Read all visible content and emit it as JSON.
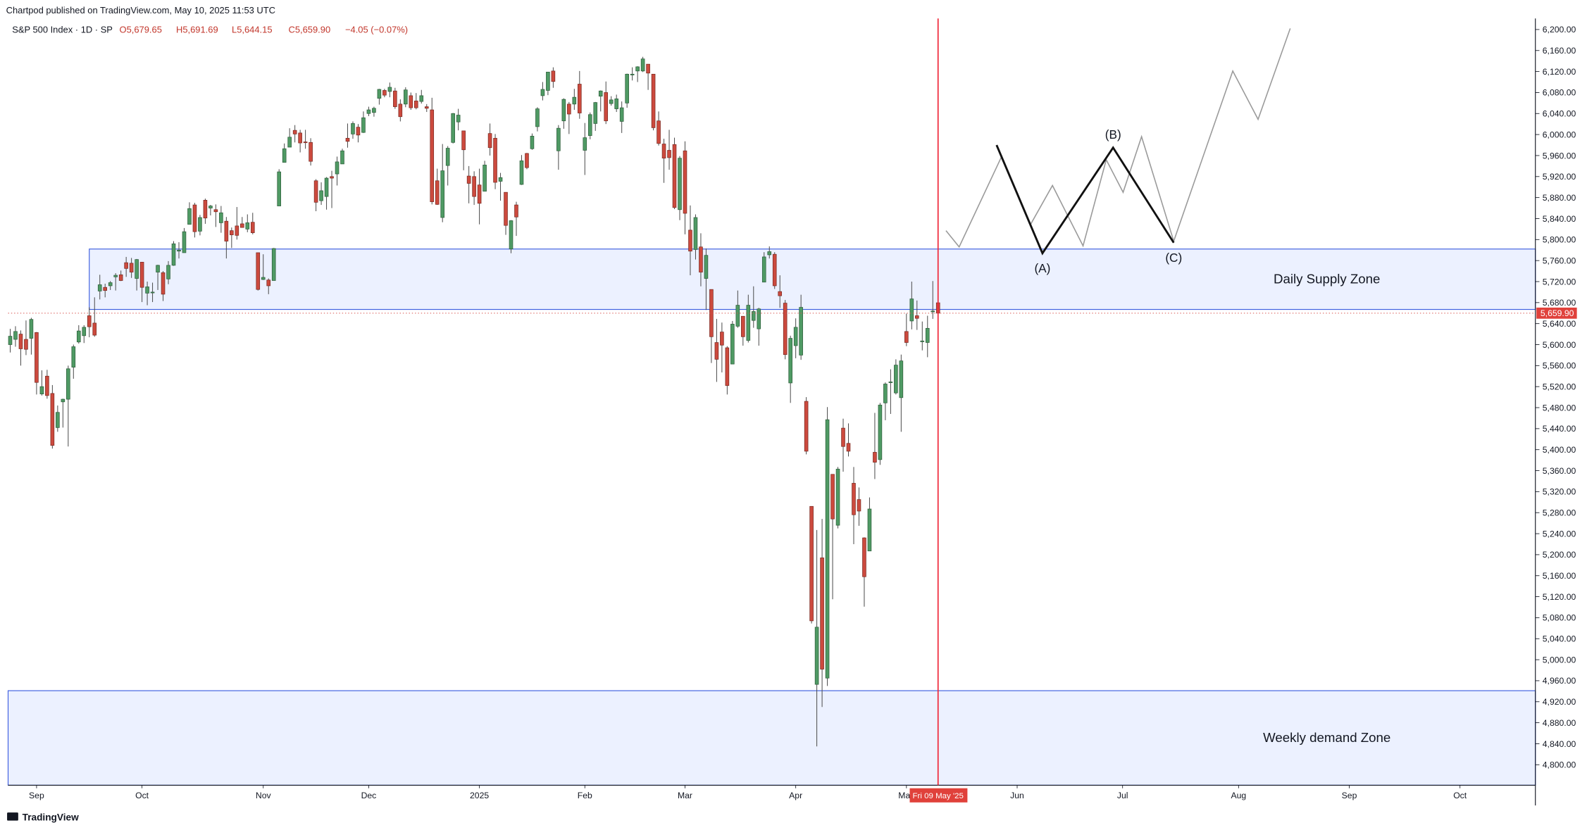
{
  "header": {
    "publisher": "Chartpod published on TradingView.com, May 10, 2025 11:53 UTC",
    "symbol": "S&P 500 Index · 1D · SP",
    "legend": [
      "O5,679.65",
      "H5,691.69",
      "L5,644.15",
      "C5,659.90",
      "−4.05 (−0.07%)"
    ]
  },
  "chart_data": {
    "type": "candlestick",
    "up_color": "#4f9a64",
    "down_color": "#cc4a3e",
    "wick_color": "#4a4a4a",
    "grid": false,
    "xlim": [
      -0.4,
      289.3
    ],
    "ylim": [
      4761,
      6221
    ],
    "xticks": [
      {
        "value": 5,
        "label": "Sep"
      },
      {
        "value": 25,
        "label": "Oct"
      },
      {
        "value": 48,
        "label": "Nov"
      },
      {
        "value": 68,
        "label": "Dec"
      },
      {
        "value": 89,
        "label": "2025"
      },
      {
        "value": 109,
        "label": "Feb"
      },
      {
        "value": 128,
        "label": "Mar"
      },
      {
        "value": 149,
        "label": "Apr"
      },
      {
        "value": 170,
        "label": "May"
      },
      {
        "value": 191,
        "label": "Jun"
      },
      {
        "value": 211,
        "label": "Jul"
      },
      {
        "value": 233,
        "label": "Aug"
      },
      {
        "value": 254,
        "label": "Sep"
      },
      {
        "value": 275,
        "label": "Oct"
      }
    ],
    "yticks": [
      {
        "value": 6200,
        "label": "6,200.00"
      },
      {
        "value": 6160,
        "label": "6,160.00"
      },
      {
        "value": 6120,
        "label": "6,120.00"
      },
      {
        "value": 6080,
        "label": "6,080.00"
      },
      {
        "value": 6040,
        "label": "6,040.00"
      },
      {
        "value": 6000,
        "label": "6,000.00"
      },
      {
        "value": 5960,
        "label": "5,960.00"
      },
      {
        "value": 5920,
        "label": "5,920.00"
      },
      {
        "value": 5880,
        "label": "5,880.00"
      },
      {
        "value": 5840,
        "label": "5,840.00"
      },
      {
        "value": 5800,
        "label": "5,800.00"
      },
      {
        "value": 5760,
        "label": "5,760.00"
      },
      {
        "value": 5720,
        "label": "5,720.00"
      },
      {
        "value": 5680,
        "label": "5,680.00"
      },
      {
        "value": 5640,
        "label": "5,640.00"
      },
      {
        "value": 5600,
        "label": "5,600.00"
      },
      {
        "value": 5560,
        "label": "5,560.00"
      },
      {
        "value": 5520,
        "label": "5,520.00"
      },
      {
        "value": 5480,
        "label": "5,480.00"
      },
      {
        "value": 5440,
        "label": "5,440.00"
      },
      {
        "value": 5400,
        "label": "5,400.00"
      },
      {
        "value": 5360,
        "label": "5,360.00"
      },
      {
        "value": 5320,
        "label": "5,320.00"
      },
      {
        "value": 5280,
        "label": "5,280.00"
      },
      {
        "value": 5240,
        "label": "5,240.00"
      },
      {
        "value": 5200,
        "label": "5,200.00"
      },
      {
        "value": 5160,
        "label": "5,160.00"
      },
      {
        "value": 5120,
        "label": "5,120.00"
      },
      {
        "value": 5080,
        "label": "5,080.00"
      },
      {
        "value": 5040,
        "label": "5,040.00"
      },
      {
        "value": 5000,
        "label": "5,000.00"
      },
      {
        "value": 4960,
        "label": "4,960.00"
      },
      {
        "value": 4920,
        "label": "4,920.00"
      },
      {
        "value": 4880,
        "label": "4,880.00"
      },
      {
        "value": 4840,
        "label": "4,840.00"
      },
      {
        "value": 4800,
        "label": "4,800.00"
      }
    ],
    "last_price": {
      "value": 5659.9,
      "label": "5,659.90"
    },
    "marker_date": {
      "x": 176,
      "label": "Fri 09 May '25"
    },
    "zones": [
      {
        "label": "Daily Supply Zone",
        "x": [
          15,
          289.3
        ],
        "range": [
          5667,
          5782
        ]
      },
      {
        "label": "Weekly demand Zone",
        "x": [
          -0.4,
          289.3
        ],
        "range": [
          4761,
          4941
        ]
      }
    ],
    "projection": {
      "color": "#9a9a9a",
      "x": [
        177.5,
        180,
        188,
        193.5,
        197.7,
        203.5,
        207.9,
        211.1,
        214.6,
        220.7,
        231.9,
        236.7,
        242.8
      ],
      "values": [
        5817,
        5786,
        5957,
        5828,
        5903,
        5788,
        5952,
        5890,
        5996,
        5797,
        6121,
        6029,
        6202
      ]
    },
    "pattern": {
      "color": "#111111",
      "x": [
        187.1,
        195.8,
        209.2,
        220.7
      ],
      "values": [
        5980,
        5774,
        5975,
        5794
      ],
      "labels": [
        "(A)",
        "(B)",
        "(C)"
      ]
    },
    "ohlc": [
      [
        5600,
        5630,
        5585,
        5616
      ],
      [
        5610,
        5635,
        5596,
        5625
      ],
      [
        5620,
        5627,
        5560,
        5592
      ],
      [
        5610,
        5646,
        5580,
        5591
      ],
      [
        5612,
        5651,
        5581,
        5648
      ],
      [
        5623,
        5624,
        5505,
        5528
      ],
      [
        5506,
        5551,
        5503,
        5520
      ],
      [
        5540,
        5552,
        5497,
        5503
      ],
      [
        5507,
        5523,
        5402,
        5408
      ],
      [
        5442,
        5484,
        5434,
        5471
      ],
      [
        5491,
        5497,
        5442,
        5496
      ],
      [
        5496,
        5560,
        5406,
        5554
      ],
      [
        5557,
        5600,
        5535,
        5596
      ],
      [
        5605,
        5637,
        5602,
        5626
      ],
      [
        5617,
        5637,
        5603,
        5633
      ],
      [
        5655,
        5671,
        5614,
        5634
      ],
      [
        5641,
        5690,
        5615,
        5618
      ],
      [
        5702,
        5733,
        5686,
        5714
      ],
      [
        5709,
        5716,
        5690,
        5703
      ],
      [
        5712,
        5721,
        5704,
        5718
      ],
      [
        5729,
        5736,
        5703,
        5732
      ],
      [
        5733,
        5741,
        5721,
        5722
      ],
      [
        5756,
        5767,
        5729,
        5745
      ],
      [
        5755,
        5765,
        5727,
        5738
      ],
      [
        5726,
        5763,
        5703,
        5762
      ],
      [
        5757,
        5757,
        5681,
        5709
      ],
      [
        5698,
        5720,
        5675,
        5710
      ],
      [
        5699,
        5718,
        5681,
        5700
      ],
      [
        5738,
        5752,
        5704,
        5751
      ],
      [
        5737,
        5740,
        5683,
        5696
      ],
      [
        5725,
        5759,
        5715,
        5751
      ],
      [
        5751,
        5797,
        5750,
        5792
      ],
      [
        5778,
        5795,
        5764,
        5780
      ],
      [
        5775,
        5822,
        5775,
        5815
      ],
      [
        5829,
        5871,
        5829,
        5859
      ],
      [
        5866,
        5870,
        5804,
        5815
      ],
      [
        5816,
        5847,
        5808,
        5842
      ],
      [
        5875,
        5878,
        5830,
        5841
      ],
      [
        5860,
        5866,
        5846,
        5864
      ],
      [
        5857,
        5867,
        5824,
        5853
      ],
      [
        5832,
        5864,
        5813,
        5851
      ],
      [
        5835,
        5843,
        5764,
        5797
      ],
      [
        5817,
        5823,
        5784,
        5809
      ],
      [
        5826,
        5862,
        5800,
        5808
      ],
      [
        5830,
        5843,
        5823,
        5823
      ],
      [
        5820,
        5848,
        5814,
        5832
      ],
      [
        5833,
        5851,
        5810,
        5813
      ],
      [
        5775,
        5775,
        5703,
        5705
      ],
      [
        5724,
        5772,
        5723,
        5728
      ],
      [
        5723,
        5726,
        5696,
        5712
      ],
      [
        5722,
        5784,
        5722,
        5783
      ],
      [
        5864,
        5934,
        5864,
        5929
      ],
      [
        5947,
        5983,
        5947,
        5973
      ],
      [
        5976,
        6012,
        5976,
        5995
      ],
      [
        6008,
        6018,
        5985,
        6001
      ],
      [
        6003,
        6009,
        5966,
        5984
      ],
      [
        5986,
        6009,
        5973,
        5985
      ],
      [
        5985,
        5993,
        5941,
        5949
      ],
      [
        5912,
        5915,
        5854,
        5871
      ],
      [
        5874,
        5909,
        5866,
        5893
      ],
      [
        5882,
        5919,
        5857,
        5917
      ],
      [
        5920,
        5931,
        5860,
        5917
      ],
      [
        5925,
        5958,
        5903,
        5948
      ],
      [
        5944,
        5973,
        5944,
        5969
      ],
      [
        5993,
        6021,
        5975,
        5987
      ],
      [
        6001,
        6025,
        5992,
        6021
      ],
      [
        6014,
        6020,
        5985,
        5999
      ],
      [
        6004,
        6044,
        6003,
        6032
      ],
      [
        6040,
        6053,
        6035,
        6047
      ],
      [
        6042,
        6053,
        6034,
        6050
      ],
      [
        6069,
        6087,
        6057,
        6086
      ],
      [
        6084,
        6087,
        6071,
        6075
      ],
      [
        6082,
        6099,
        6071,
        6090
      ],
      [
        6083,
        6089,
        6049,
        6053
      ],
      [
        6058,
        6067,
        6025,
        6034
      ],
      [
        6058,
        6090,
        6052,
        6085
      ],
      [
        6074,
        6080,
        6047,
        6051
      ],
      [
        6064,
        6079,
        6048,
        6051
      ],
      [
        6063,
        6085,
        6059,
        6074
      ],
      [
        6053,
        6058,
        6043,
        6050
      ],
      [
        6047,
        6070,
        5867,
        5872
      ],
      [
        5912,
        5935,
        5866,
        5867
      ],
      [
        5842,
        5982,
        5833,
        5931
      ],
      [
        5941,
        5978,
        5903,
        5974
      ],
      [
        5985,
        6041,
        5983,
        6040
      ],
      [
        6024,
        6049,
        6008,
        6037
      ],
      [
        6007,
        6007,
        5932,
        5971
      ],
      [
        5921,
        5940,
        5869,
        5907
      ],
      [
        5920,
        5930,
        5866,
        5882
      ],
      [
        5904,
        5935,
        5829,
        5869
      ],
      [
        5892,
        5950,
        5892,
        5942
      ],
      [
        6002,
        6021,
        5960,
        5975
      ],
      [
        5993,
        6001,
        5896,
        5909
      ],
      [
        5911,
        5927,
        5874,
        5918
      ],
      [
        5890,
        5890,
        5809,
        5827
      ],
      [
        5782,
        5837,
        5774,
        5836
      ],
      [
        5866,
        5872,
        5807,
        5843
      ],
      [
        5905,
        5961,
        5904,
        5950
      ],
      [
        5964,
        5965,
        5934,
        5937
      ],
      [
        5973,
        6002,
        5971,
        5997
      ],
      [
        6015,
        6052,
        6006,
        6049
      ],
      [
        6074,
        6100,
        6065,
        6086
      ],
      [
        6084,
        6119,
        6075,
        6119
      ],
      [
        6121,
        6128,
        6089,
        6101
      ],
      [
        5969,
        6018,
        5933,
        6012
      ],
      [
        6026,
        6069,
        6011,
        6067
      ],
      [
        6058,
        6062,
        6001,
        6039
      ],
      [
        6058,
        6087,
        6047,
        6071
      ],
      [
        6096,
        6121,
        6030,
        6041
      ],
      [
        5970,
        6022,
        5923,
        5994
      ],
      [
        5998,
        6042,
        5991,
        6038
      ],
      [
        6021,
        6062,
        6007,
        6061
      ],
      [
        6073,
        6084,
        6044,
        6083
      ],
      [
        6080,
        6101,
        6020,
        6026
      ],
      [
        6059,
        6073,
        6055,
        6066
      ],
      [
        6049,
        6076,
        6043,
        6068
      ],
      [
        6025,
        6063,
        6003,
        6051
      ],
      [
        6060,
        6116,
        6051,
        6115
      ],
      [
        6115,
        6128,
        6103,
        6115
      ],
      [
        6121,
        6130,
        6100,
        6129
      ],
      [
        6121,
        6148,
        6119,
        6144
      ],
      [
        6134,
        6134,
        6085,
        6117
      ],
      [
        6115,
        6115,
        6008,
        6013
      ],
      [
        6026,
        6044,
        5979,
        5983
      ],
      [
        5982,
        5992,
        5908,
        5955
      ],
      [
        5970,
        6009,
        5933,
        5956
      ],
      [
        5981,
        5994,
        5858,
        5861
      ],
      [
        5857,
        5959,
        5837,
        5955
      ],
      [
        5969,
        5987,
        5810,
        5850
      ],
      [
        5818,
        5865,
        5732,
        5778
      ],
      [
        5781,
        5848,
        5762,
        5842
      ],
      [
        5786,
        5812,
        5711,
        5738
      ],
      [
        5726,
        5783,
        5666,
        5770
      ],
      [
        5705,
        5705,
        5565,
        5615
      ],
      [
        5604,
        5649,
        5529,
        5572
      ],
      [
        5624,
        5642,
        5547,
        5599
      ],
      [
        5594,
        5597,
        5505,
        5522
      ],
      [
        5563,
        5645,
        5563,
        5639
      ],
      [
        5635,
        5703,
        5632,
        5675
      ],
      [
        5654,
        5654,
        5598,
        5615
      ],
      [
        5608,
        5695,
        5604,
        5675
      ],
      [
        5646,
        5711,
        5632,
        5663
      ],
      [
        5630,
        5670,
        5598,
        5668
      ],
      [
        5719,
        5776,
        5719,
        5767
      ],
      [
        5771,
        5787,
        5764,
        5777
      ],
      [
        5772,
        5776,
        5706,
        5712
      ],
      [
        5701,
        5732,
        5670,
        5693
      ],
      [
        5679,
        5685,
        5572,
        5581
      ],
      [
        5527,
        5617,
        5489,
        5612
      ],
      [
        5598,
        5650,
        5574,
        5633
      ],
      [
        5580,
        5695,
        5571,
        5671
      ],
      [
        5492,
        5500,
        5391,
        5397
      ],
      [
        5292,
        5292,
        5069,
        5074
      ],
      [
        4953,
        5247,
        4835,
        5062
      ],
      [
        5194,
        5268,
        4910,
        4982
      ],
      [
        4965,
        5481,
        4950,
        5457
      ],
      [
        5353,
        5353,
        5115,
        5268
      ],
      [
        5256,
        5367,
        5250,
        5363
      ],
      [
        5441,
        5459,
        5358,
        5406
      ],
      [
        5412,
        5450,
        5387,
        5397
      ],
      [
        5336,
        5367,
        5220,
        5276
      ],
      [
        5305,
        5328,
        5255,
        5283
      ],
      [
        5232,
        5233,
        5101,
        5158
      ],
      [
        5207,
        5309,
        5207,
        5287
      ],
      [
        5395,
        5470,
        5344,
        5376
      ],
      [
        5381,
        5489,
        5371,
        5485
      ],
      [
        5489,
        5528,
        5456,
        5525
      ],
      [
        5529,
        5553,
        5468,
        5529
      ],
      [
        5508,
        5572,
        5505,
        5561
      ],
      [
        5499,
        5581,
        5434,
        5569
      ],
      [
        5625,
        5659,
        5597,
        5604
      ],
      [
        5645,
        5720,
        5629,
        5687
      ],
      [
        5655,
        5684,
        5628,
        5650
      ],
      [
        5606,
        5644,
        5589,
        5607
      ],
      [
        5604,
        5655,
        5576,
        5631
      ],
      [
        5663,
        5721,
        5649,
        5664
      ],
      [
        5679.65,
        5691.69,
        5644.15,
        5659.9
      ]
    ]
  },
  "footer": {
    "brand": "TradingView"
  }
}
